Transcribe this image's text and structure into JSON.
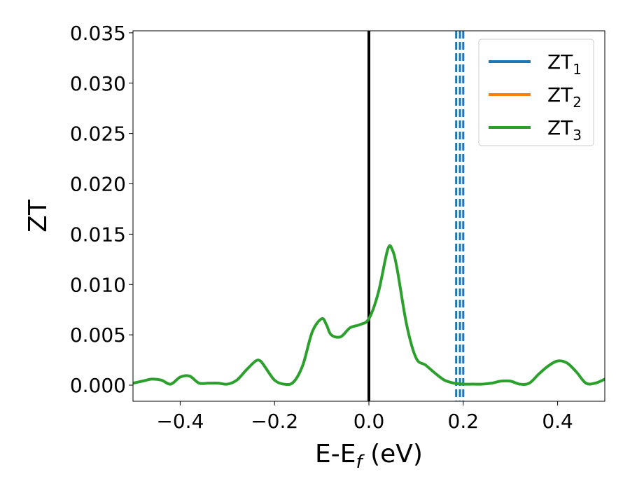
{
  "chart_data": {
    "type": "line",
    "xlabel": "E-E",
    "xlabel_sub": "f",
    "xlabel_unit": " (eV)",
    "ylabel": "ZT",
    "xlim": [
      -0.5,
      0.5
    ],
    "ylim": [
      -0.0016,
      0.0352
    ],
    "x_ticks": [
      -0.4,
      -0.2,
      0.0,
      0.2,
      0.4
    ],
    "x_tick_labels": [
      "−0.4",
      "−0.2",
      "0.0",
      "0.2",
      "0.4"
    ],
    "y_ticks": [
      0.0,
      0.005,
      0.01,
      0.015,
      0.02,
      0.025,
      0.03,
      0.035
    ],
    "y_tick_labels": [
      "0.000",
      "0.005",
      "0.010",
      "0.015",
      "0.020",
      "0.025",
      "0.030",
      "0.035"
    ],
    "grid": false,
    "legend_position": "top-right",
    "series": [
      {
        "name": "ZT",
        "name_sub": "1",
        "color": "#1f77b4",
        "x": [],
        "y": []
      },
      {
        "name": "ZT",
        "name_sub": "2",
        "color": "#ff7f0e",
        "x": [],
        "y": []
      },
      {
        "name": "ZT",
        "name_sub": "3",
        "color": "#2ca02c",
        "x": [
          -0.5,
          -0.48,
          -0.46,
          -0.44,
          -0.42,
          -0.4,
          -0.38,
          -0.36,
          -0.34,
          -0.32,
          -0.3,
          -0.28,
          -0.26,
          -0.24,
          -0.23,
          -0.22,
          -0.2,
          -0.18,
          -0.16,
          -0.14,
          -0.12,
          -0.1,
          -0.09,
          -0.08,
          -0.06,
          -0.04,
          -0.02,
          0.0,
          0.02,
          0.04,
          0.05,
          0.06,
          0.08,
          0.1,
          0.12,
          0.14,
          0.16,
          0.18,
          0.2,
          0.22,
          0.24,
          0.26,
          0.28,
          0.3,
          0.32,
          0.34,
          0.36,
          0.38,
          0.4,
          0.42,
          0.44,
          0.46,
          0.48,
          0.5
        ],
        "y": [
          0.0002,
          0.0004,
          0.0006,
          0.0005,
          0.0001,
          0.0008,
          0.0009,
          0.0002,
          0.0002,
          0.0002,
          0.0001,
          0.0005,
          0.0015,
          0.0024,
          0.0024,
          0.0018,
          0.0005,
          0.0001,
          0.0003,
          0.002,
          0.0053,
          0.0066,
          0.006,
          0.005,
          0.0048,
          0.0057,
          0.006,
          0.0066,
          0.0092,
          0.0135,
          0.0134,
          0.0115,
          0.006,
          0.0027,
          0.002,
          0.0012,
          0.0005,
          0.0002,
          0.0001,
          0.0001,
          0.0001,
          0.0002,
          0.0004,
          0.0004,
          0.0001,
          0.0002,
          0.0011,
          0.0019,
          0.0024,
          0.0022,
          0.0013,
          0.0002,
          0.0002,
          0.0006
        ]
      }
    ],
    "reference_lines": [
      {
        "type": "vertical",
        "x": 0.0,
        "color": "#000000",
        "style": "solid"
      },
      {
        "type": "vertical",
        "x": 0.185,
        "color": "#1f77b4",
        "style": "dashed"
      },
      {
        "type": "vertical",
        "x": 0.193,
        "color": "#1f77b4",
        "style": "dashed"
      },
      {
        "type": "vertical",
        "x": 0.2,
        "color": "#1f77b4",
        "style": "dashed"
      }
    ]
  }
}
